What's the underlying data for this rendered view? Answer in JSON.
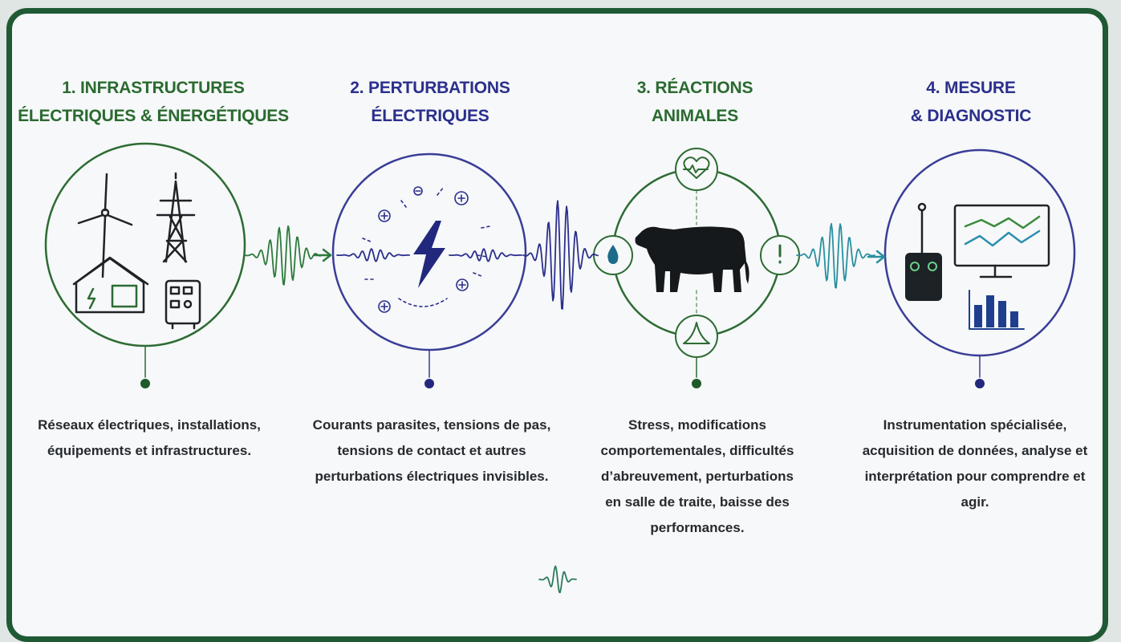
{
  "steps": [
    {
      "title": [
        "1. INFRASTRUCTURES",
        "ÉLECTRIQUES & ÉNERGÉTIQUES"
      ],
      "description": "Réseaux électriques, installations, équipements et infrastructures."
    },
    {
      "title": [
        "2. PERTURBATIONS",
        "ÉLECTRIQUES"
      ],
      "description": "Courants parasites, tensions de pas, tensions de contact et autres perturbations électriques invisibles."
    },
    {
      "title": [
        "3. RÉACTIONS",
        "ANIMALES"
      ],
      "description": "Stress, modifications comportementales, difficultés d’abreuvement, perturbations en salle de traite, baisse des performances."
    },
    {
      "title": [
        "4. MESURE",
        "& DIAGNOSTIC"
      ],
      "description": "Instrumentation spécialisée, acquisition de données, analyse et interprétation pour comprendre et agir."
    }
  ]
}
